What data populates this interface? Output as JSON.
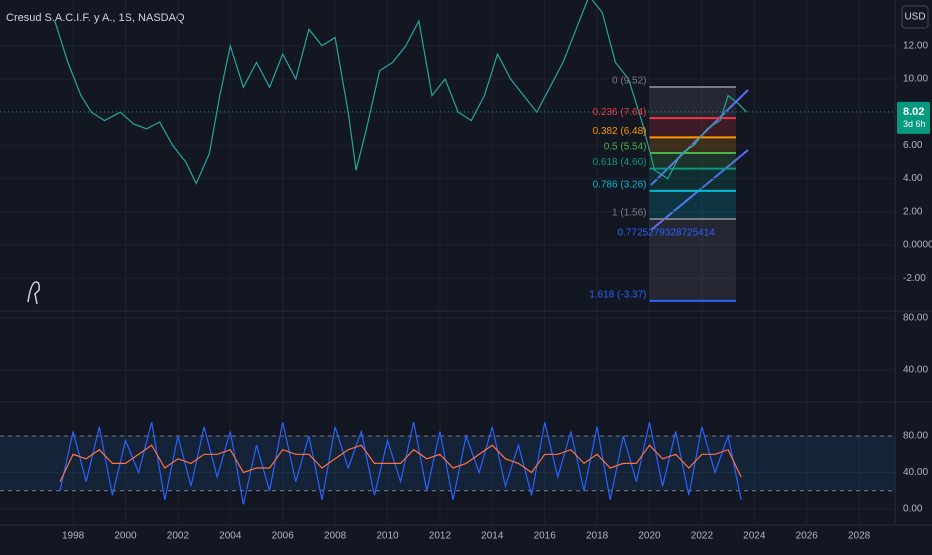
{
  "header": {
    "symbol": "Cresud S.A.C.I.F. y A., 1S, NASDAQ",
    "currency": "USD"
  },
  "chart_data": [
    {
      "type": "line",
      "pane": "price",
      "x": [
        1997.3,
        1997.8,
        1998.3,
        1998.7,
        1999.2,
        1999.8,
        2000.3,
        2000.8,
        2001.3,
        2001.8,
        2002.3,
        2002.7,
        2003.2,
        2003.6,
        2004.0,
        2004.5,
        2005.0,
        2005.5,
        2006.0,
        2006.5,
        2007.0,
        2007.5,
        2008.0,
        2008.5,
        2008.8,
        2009.2,
        2009.7,
        2010.2,
        2010.7,
        2011.2,
        2011.7,
        2012.2,
        2012.7,
        2013.2,
        2013.7,
        2014.2,
        2014.7,
        2015.2,
        2015.7,
        2016.2,
        2016.7,
        2017.2,
        2017.7,
        2018.2,
        2018.7,
        2019.2,
        2019.7,
        2020.2,
        2020.7,
        2021.2,
        2021.7,
        2022.2,
        2022.7,
        2023.0,
        2023.4,
        2023.7
      ],
      "series": [
        {
          "color": "#26a69a",
          "values": [
            13.5,
            11,
            9,
            8,
            7.5,
            8,
            7.3,
            7,
            7.4,
            6,
            5,
            3.7,
            5.5,
            9,
            12,
            9.5,
            11,
            9.5,
            11.5,
            10,
            13,
            12,
            12.5,
            8,
            4.5,
            7,
            10.5,
            11,
            12,
            13.5,
            9,
            10,
            8,
            7.5,
            9,
            11.5,
            10,
            9,
            8,
            9.5,
            11,
            13,
            15,
            14,
            11,
            10,
            7.5,
            4.5,
            4,
            5.5,
            6,
            7,
            7.5,
            9,
            8.5,
            8.02
          ]
        }
      ],
      "xlim": [
        1995.21,
        2029.37
      ],
      "xticks": [
        1998,
        2000,
        2002,
        2004,
        2006,
        2008,
        2010,
        2012,
        2014,
        2016,
        2018,
        2020,
        2022,
        2024,
        2026,
        2028
      ],
      "ylim": [
        -3.92,
        14.76
      ],
      "yticks": [
        {
          "value": 12,
          "label": "12.00"
        },
        {
          "value": 10,
          "label": "10.00"
        },
        {
          "value": 8,
          "label": "8.00"
        },
        {
          "value": 6,
          "label": "6.00"
        },
        {
          "value": 4,
          "label": "4.00"
        },
        {
          "value": 2,
          "label": "2.00"
        },
        {
          "value": 0,
          "label": "0.0000"
        },
        {
          "value": -2,
          "label": "-2.00"
        }
      ],
      "current_price": 8.02,
      "countdown": "3d 6h",
      "fib": {
        "x": [
          2020.0,
          2023.3
        ],
        "levels": [
          {
            "label": "0 (9.52)",
            "value": 9.52,
            "color": "#787b86"
          },
          {
            "label": "0.236 (7.64)",
            "value": 7.64,
            "color": "#f23645"
          },
          {
            "label": "0.382 (6.48)",
            "value": 6.48,
            "color": "#ff9800"
          },
          {
            "label": "0.5 (5.54)",
            "value": 5.54,
            "color": "#4caf50"
          },
          {
            "label": "0.618 (4.60)",
            "value": 4.6,
            "color": "#089981"
          },
          {
            "label": "0.786 (3.26)",
            "value": 3.26,
            "color": "#00bcd4"
          },
          {
            "label": "1 (1.56)",
            "value": 1.56,
            "color": "#787b86"
          },
          {
            "label": "1.618 (-3.37)",
            "value": -3.37,
            "color": "#2962ff"
          }
        ],
        "annotation": "0.7725279328725414"
      }
    },
    {
      "type": "line",
      "pane": "middle",
      "series": [],
      "ylim": [
        15.4,
        84.6
      ],
      "yticks": [
        {
          "value": 80,
          "label": "80.00"
        },
        {
          "value": 40,
          "label": "40.00"
        }
      ]
    },
    {
      "type": "line",
      "pane": "stochastic",
      "x": [
        1997.5,
        1998,
        1998.5,
        1999,
        1999.5,
        2000,
        2000.5,
        2001,
        2001.5,
        2002,
        2002.5,
        2003,
        2003.5,
        2004,
        2004.5,
        2005,
        2005.5,
        2006,
        2006.5,
        2007,
        2007.5,
        2008,
        2008.5,
        2009,
        2009.5,
        2010,
        2010.5,
        2011,
        2011.5,
        2012,
        2012.5,
        2013,
        2013.5,
        2014,
        2014.5,
        2015,
        2015.5,
        2016,
        2016.5,
        2017,
        2017.5,
        2018,
        2018.5,
        2019,
        2019.5,
        2020,
        2020.5,
        2021,
        2021.5,
        2022,
        2022.5,
        2023,
        2023.5
      ],
      "series": [
        {
          "color": "#2962ff",
          "values": [
            20,
            85,
            30,
            90,
            15,
            75,
            40,
            95,
            10,
            80,
            25,
            90,
            35,
            85,
            5,
            70,
            20,
            95,
            30,
            80,
            10,
            90,
            45,
            85,
            15,
            75,
            30,
            95,
            20,
            85,
            10,
            80,
            40,
            90,
            25,
            70,
            15,
            95,
            35,
            85,
            20,
            90,
            10,
            80,
            30,
            95,
            25,
            85,
            15,
            90,
            40,
            80,
            10
          ]
        },
        {
          "color": "#ff7043",
          "values": [
            30,
            60,
            55,
            65,
            50,
            50,
            60,
            70,
            45,
            55,
            50,
            60,
            60,
            65,
            40,
            45,
            45,
            65,
            60,
            60,
            45,
            55,
            65,
            70,
            50,
            50,
            50,
            65,
            55,
            60,
            45,
            50,
            60,
            70,
            55,
            50,
            40,
            60,
            60,
            65,
            50,
            60,
            45,
            50,
            50,
            70,
            55,
            60,
            45,
            60,
            60,
            65,
            35
          ]
        }
      ],
      "ylim": [
        -17.5,
        117.3
      ],
      "yticks": [
        {
          "value": 80,
          "label": "80.00"
        },
        {
          "value": 40,
          "label": "40.00"
        },
        {
          "value": 0,
          "label": "0.00"
        }
      ],
      "bands": [
        80,
        20
      ]
    }
  ]
}
